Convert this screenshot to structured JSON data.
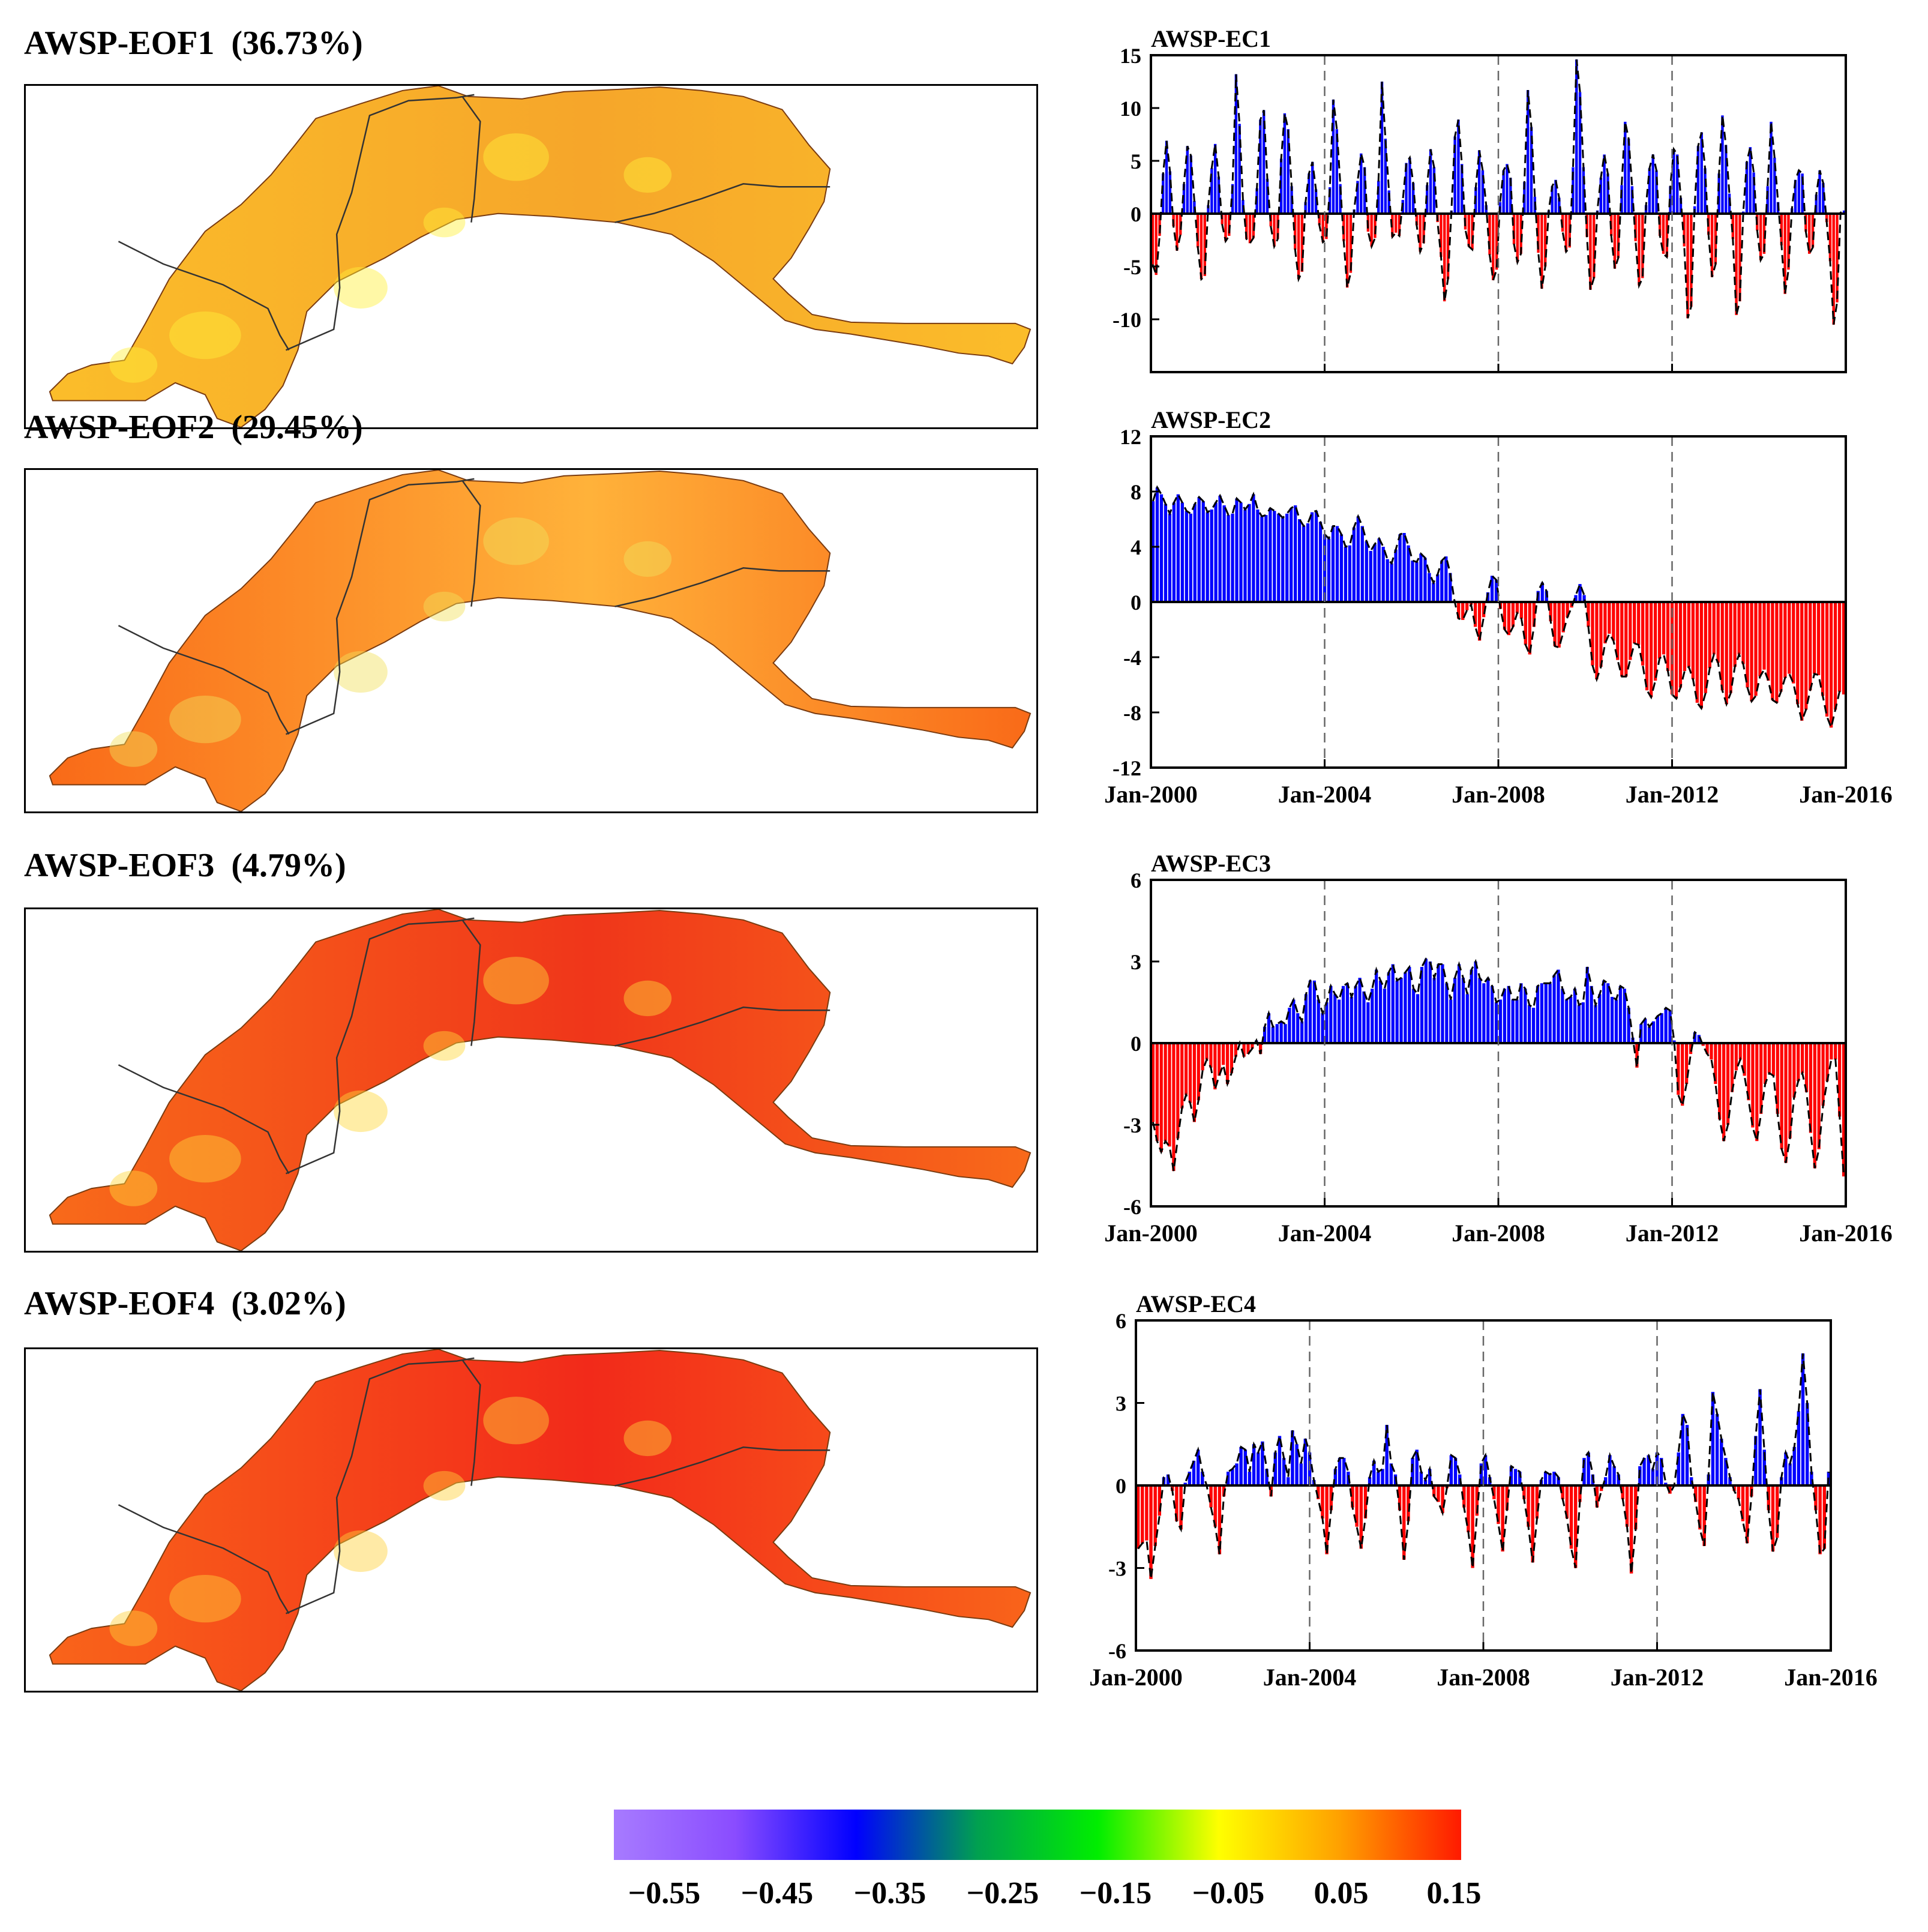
{
  "maps": [
    {
      "title": "AWSP-EOF1  (36.73%)",
      "theme": "pos1"
    },
    {
      "title": "AWSP-EOF2  (29.45%)",
      "theme": "pos2"
    },
    {
      "title": "AWSP-EOF3  (4.79%)",
      "theme": "pos3"
    },
    {
      "title": "AWSP-EOF4  (3.02%)",
      "theme": "pos4"
    }
  ],
  "chart_data": [
    {
      "type": "bar",
      "title": "AWSP-EC1",
      "ylim": [
        -15,
        15
      ],
      "yticks": [
        -10,
        -5,
        0,
        5,
        10,
        15
      ],
      "ytick_labels": [
        "-10",
        "-5",
        "0",
        "5",
        "10",
        "15"
      ],
      "xlim": [
        2000,
        2016
      ],
      "xticks": [
        2000,
        2004,
        2008,
        2012,
        2016
      ],
      "xtick_labels": [],
      "dashed_vlines": [
        2004,
        2008,
        2012
      ],
      "positive_color": "#0000ff",
      "negative_color": "#ff0000",
      "series": [
        {
          "name": "AWSP-EC1",
          "style": "monthly bars with dashed envelope",
          "values": [
            -4.8,
            -5.8,
            -2.1,
            3.8,
            6.9,
            4.0,
            -1.2,
            -3.5,
            -2.0,
            2.8,
            6.4,
            5.5,
            1.2,
            -3.2,
            -6.2,
            -5.9,
            0.8,
            4.3,
            6.6,
            3.5,
            -1.0,
            -2.6,
            -2.1,
            2.8,
            13.2,
            8.5,
            1.3,
            -2.4,
            -2.8,
            -2.3,
            2.4,
            8.9,
            9.8,
            3.3,
            -1.2,
            -3.1,
            -2.4,
            5.2,
            9.5,
            8.0,
            2.6,
            -3.4,
            -6.2,
            -5.5,
            1.1,
            3.8,
            4.9,
            2.3,
            -1.1,
            -2.7,
            -2.4,
            2.5,
            10.8,
            8.0,
            2.8,
            -2.6,
            -7.0,
            -5.6,
            0.4,
            3.1,
            5.7,
            4.4,
            -1.7,
            -3.1,
            -2.3,
            3.1,
            12.5,
            7.1,
            2.2,
            -2.2,
            -1.8,
            -2.1,
            1.3,
            4.8,
            5.3,
            2.9,
            -1.1,
            -3.6,
            -2.8,
            2.7,
            6.1,
            4.4,
            -0.8,
            -4.1,
            -8.3,
            -6.2,
            0.3,
            7.3,
            8.9,
            4.7,
            -1.5,
            -3.1,
            -3.4,
            2.5,
            6.0,
            4.1,
            0.8,
            -3.9,
            -6.3,
            -5.3,
            1.1,
            4.1,
            4.7,
            3.4,
            -2.9,
            -4.6,
            -3.8,
            3.0,
            11.7,
            8.2,
            1.6,
            -3.7,
            -7.1,
            -5.0,
            0.3,
            2.6,
            3.2,
            1.5,
            -1.7,
            -3.6,
            -3.2,
            4.4,
            14.6,
            11.5,
            4.4,
            -2.2,
            -7.2,
            -6.1,
            0.3,
            3.4,
            5.6,
            3.8,
            -2.1,
            -5.2,
            -4.2,
            2.7,
            8.7,
            7.1,
            2.6,
            -2.6,
            -6.8,
            -6.1,
            0.8,
            4.3,
            5.6,
            4.1,
            -2.1,
            -3.8,
            -4.1,
            2.6,
            6.1,
            5.6,
            1.5,
            -3.1,
            -9.9,
            -8.8,
            0.7,
            6.4,
            7.7,
            4.3,
            -2.0,
            -6.0,
            -4.8,
            3.8,
            9.3,
            6.5,
            1.9,
            -2.4,
            -9.6,
            -8.3,
            0.2,
            4.9,
            6.3,
            3.9,
            -1.6,
            -4.4,
            -3.8,
            2.6,
            8.7,
            5.3,
            1.1,
            -3.0,
            -7.6,
            -5.3,
            0.5,
            3.2,
            4.1,
            3.8,
            -1.7,
            -3.8,
            -3.2,
            1.8,
            4.1,
            2.9,
            -0.8,
            -4.5,
            -10.5,
            -8.4,
            0.1,
            0.3
          ]
        }
      ]
    },
    {
      "type": "bar",
      "title": "AWSP-EC2",
      "ylim": [
        -12,
        12
      ],
      "yticks": [
        -12,
        -8,
        -4,
        0,
        4,
        8,
        12
      ],
      "ytick_labels": [
        "-12",
        "-8",
        "-4",
        "0",
        "4",
        "8",
        "12"
      ],
      "xlim": [
        2000,
        2016
      ],
      "xticks": [
        2000,
        2004,
        2008,
        2012,
        2016
      ],
      "xtick_labels": [
        "Jan-2000",
        "Jan-2004",
        "Jan-2008",
        "Jan-2012",
        "Jan-2016"
      ],
      "dashed_vlines": [
        2004,
        2008,
        2012
      ],
      "positive_color": "#0000ff",
      "negative_color": "#ff0000",
      "series": [
        {
          "name": "AWSP-EC2",
          "style": "monthly bars with dashed envelope",
          "values": [
            7.3,
            8.3,
            7.8,
            7.1,
            6.4,
            7.2,
            7.8,
            7.2,
            6.6,
            6.4,
            7.1,
            7.6,
            7.3,
            6.5,
            6.7,
            7.2,
            7.7,
            7.0,
            6.3,
            6.4,
            7.5,
            7.2,
            6.7,
            7.1,
            7.8,
            6.7,
            6.2,
            6.3,
            6.8,
            6.6,
            6.4,
            6.1,
            6.4,
            6.8,
            7.0,
            6.0,
            5.5,
            5.7,
            6.5,
            6.6,
            5.8,
            4.9,
            4.6,
            5.5,
            5.5,
            4.9,
            4.0,
            4.1,
            5.4,
            6.2,
            5.5,
            4.4,
            3.7,
            4.2,
            4.6,
            4.0,
            3.1,
            2.8,
            3.8,
            4.9,
            5.0,
            4.1,
            3.0,
            2.9,
            3.5,
            3.2,
            2.1,
            1.4,
            2.0,
            3.0,
            3.3,
            2.1,
            0.1,
            -1.2,
            -1.3,
            -0.6,
            -0.2,
            -1.8,
            -2.8,
            -1.1,
            0.7,
            1.9,
            1.6,
            -0.5,
            -2.0,
            -2.4,
            -1.8,
            -0.8,
            -1.2,
            -3.1,
            -3.8,
            -1.8,
            0.8,
            1.4,
            0.8,
            -1.4,
            -3.2,
            -3.3,
            -2.2,
            -1.1,
            -0.4,
            0.5,
            1.3,
            0.5,
            -1.8,
            -4.6,
            -5.6,
            -4.7,
            -3.0,
            -2.3,
            -2.8,
            -4.2,
            -5.4,
            -5.4,
            -4.2,
            -3.0,
            -3.1,
            -4.6,
            -6.4,
            -6.9,
            -5.7,
            -4.1,
            -3.8,
            -5.0,
            -6.7,
            -7.0,
            -6.2,
            -5.0,
            -4.7,
            -5.6,
            -7.3,
            -7.7,
            -6.6,
            -4.8,
            -3.8,
            -4.4,
            -6.4,
            -7.4,
            -6.6,
            -4.7,
            -3.8,
            -4.5,
            -6.2,
            -7.2,
            -6.8,
            -5.4,
            -4.9,
            -5.7,
            -7.1,
            -7.3,
            -6.5,
            -5.5,
            -5.2,
            -5.9,
            -7.4,
            -8.6,
            -7.8,
            -6.4,
            -5.2,
            -5.3,
            -6.8,
            -8.3,
            -9.1,
            -7.8,
            -6.5,
            -6.7
          ]
        }
      ]
    },
    {
      "type": "bar",
      "title": "AWSP-EC3",
      "ylim": [
        -6,
        6
      ],
      "yticks": [
        -6,
        -3,
        0,
        3,
        6
      ],
      "ytick_labels": [
        "-6",
        "-3",
        "0",
        "3",
        "6"
      ],
      "xlim": [
        2000,
        2016
      ],
      "xticks": [
        2000,
        2004,
        2008,
        2012,
        2016
      ],
      "xtick_labels": [
        "Jan-2000",
        "Jan-2004",
        "Jan-2008",
        "Jan-2012",
        "Jan-2016"
      ],
      "dashed_vlines": [
        2004,
        2008,
        2012
      ],
      "positive_color": "#0000ff",
      "negative_color": "#ff0000",
      "series": [
        {
          "name": "AWSP-EC3",
          "style": "monthly bars with dashed envelope",
          "values": [
            -2.9,
            -3.6,
            -4.0,
            -3.6,
            -3.8,
            -4.7,
            -3.5,
            -2.4,
            -1.9,
            -2.2,
            -2.9,
            -2.1,
            -1.0,
            -0.6,
            -0.9,
            -1.7,
            -1.2,
            -0.8,
            -1.5,
            -1.1,
            -0.5,
            0.0,
            -0.5,
            -0.4,
            -0.2,
            0.1,
            -0.4,
            0.6,
            1.1,
            0.6,
            0.7,
            0.8,
            0.7,
            1.3,
            1.6,
            1.1,
            0.8,
            1.8,
            2.3,
            2.3,
            1.6,
            1.1,
            1.5,
            2.1,
            1.8,
            1.6,
            2.1,
            2.2,
            1.7,
            2.1,
            2.4,
            1.9,
            1.5,
            2.0,
            2.7,
            2.3,
            2.0,
            2.6,
            2.9,
            2.3,
            2.4,
            2.6,
            2.8,
            2.0,
            1.8,
            2.8,
            3.1,
            3.0,
            2.4,
            2.9,
            2.9,
            2.2,
            1.6,
            2.4,
            2.9,
            2.4,
            1.8,
            2.7,
            3.0,
            2.4,
            2.2,
            2.4,
            2.1,
            1.5,
            1.6,
            2.0,
            2.1,
            1.6,
            1.6,
            2.2,
            2.0,
            1.4,
            1.3,
            2.1,
            2.2,
            2.2,
            2.2,
            2.5,
            2.7,
            2.0,
            1.6,
            1.7,
            2.0,
            1.4,
            1.5,
            2.8,
            2.1,
            1.4,
            1.8,
            2.3,
            2.2,
            1.7,
            1.6,
            2.1,
            2.0,
            1.3,
            0.2,
            -0.9,
            0.7,
            0.9,
            0.6,
            0.8,
            1.0,
            1.1,
            1.3,
            1.2,
            0.1,
            -1.9,
            -2.3,
            -1.5,
            -0.4,
            0.4,
            0.3,
            -0.1,
            -0.4,
            -0.6,
            -1.5,
            -2.8,
            -3.6,
            -3.0,
            -1.8,
            -1.0,
            -0.6,
            -1.2,
            -2.1,
            -3.1,
            -3.6,
            -2.6,
            -1.5,
            -1.1,
            -1.2,
            -2.6,
            -3.9,
            -4.4,
            -3.5,
            -2.0,
            -1.4,
            -1.1,
            -1.8,
            -3.3,
            -4.6,
            -3.9,
            -2.3,
            -1.4,
            -0.6,
            -0.6,
            -2.7,
            -4.9
          ]
        }
      ]
    },
    {
      "type": "bar",
      "title": "AWSP-EC4",
      "ylim": [
        -6,
        6
      ],
      "yticks": [
        -6,
        -3,
        0,
        3,
        6
      ],
      "ytick_labels": [
        "-6",
        "-3",
        "0",
        "3",
        "6"
      ],
      "xlim": [
        2000,
        2016
      ],
      "xticks": [
        2000,
        2004,
        2008,
        2012,
        2016
      ],
      "xtick_labels": [
        "Jan-2000",
        "Jan-2004",
        "Jan-2008",
        "Jan-2012",
        "Jan-2016"
      ],
      "dashed_vlines": [
        2004,
        2008,
        2012
      ],
      "positive_color": "#0000ff",
      "negative_color": "#ff0000",
      "series": [
        {
          "name": "AWSP-EC4",
          "style": "monthly bars with dashed envelope",
          "values": [
            -2.3,
            -2.1,
            -2.0,
            -3.4,
            -2.2,
            -1.1,
            0.3,
            0.4,
            -0.2,
            -1.3,
            -1.6,
            0.1,
            0.5,
            0.9,
            1.3,
            0.5,
            0.0,
            -0.8,
            -1.5,
            -2.5,
            -0.4,
            0.5,
            0.6,
            0.8,
            1.4,
            1.3,
            0.5,
            1.5,
            1.2,
            1.6,
            0.6,
            -0.4,
            1.2,
            1.8,
            1.0,
            0.3,
            2.0,
            1.5,
            0.8,
            1.7,
            1.2,
            0.2,
            -0.5,
            -1.2,
            -2.5,
            -0.9,
            0.6,
            1.0,
            1.0,
            0.5,
            -0.8,
            -1.5,
            -2.3,
            -1.2,
            0.3,
            0.9,
            0.5,
            0.6,
            2.2,
            0.8,
            0.4,
            -0.9,
            -2.7,
            -1.3,
            1.0,
            1.3,
            0.5,
            0.2,
            0.6,
            -0.4,
            -0.6,
            -1.0,
            -0.1,
            1.1,
            1.0,
            0.4,
            -0.8,
            -1.7,
            -3.0,
            -1.1,
            0.8,
            1.1,
            0.3,
            -0.5,
            -1.4,
            -2.4,
            -0.9,
            0.7,
            0.6,
            0.5,
            -0.5,
            -1.5,
            -2.8,
            -1.2,
            0.2,
            0.5,
            0.4,
            0.5,
            0.3,
            -0.5,
            -1.2,
            -2.3,
            -3.0,
            -0.6,
            1.0,
            1.2,
            0.4,
            -0.8,
            -0.2,
            0.3,
            1.1,
            0.7,
            0.4,
            -0.5,
            -1.5,
            -3.2,
            -1.6,
            0.7,
            1.0,
            1.1,
            0.6,
            1.2,
            1.0,
            0.1,
            -0.3,
            0.0,
            1.2,
            2.6,
            2.2,
            0.3,
            -0.6,
            -1.6,
            -2.2,
            0.4,
            3.4,
            2.6,
            1.7,
            1.0,
            0.3,
            -0.2,
            -0.5,
            -1.3,
            -2.1,
            -0.4,
            1.8,
            3.5,
            1.3,
            -0.9,
            -2.4,
            -1.9,
            0.3,
            1.2,
            0.8,
            1.4,
            2.7,
            4.8,
            3.0,
            0.5,
            -0.9,
            -2.5,
            -2.3,
            0.5
          ]
        }
      ]
    }
  ],
  "colorbar": {
    "tick_labels": [
      "−0.55",
      "−0.45",
      "−0.35",
      "−0.25",
      "−0.15",
      "−0.05",
      "0.05",
      "0.15"
    ],
    "colors": [
      "#a77bff",
      "#8a4cff",
      "#0000ff",
      "#00a050",
      "#00ee00",
      "#ffff00",
      "#ffa000",
      "#ff1a00"
    ]
  },
  "colors": {
    "pos1": [
      "#fbbd2a",
      "#f6a62a",
      "#fff03a"
    ],
    "pos2": [
      "#f96a18",
      "#ffb23a",
      "#f2e05a"
    ],
    "pos3": [
      "#f86a1a",
      "#f0361a",
      "#ffd83a"
    ],
    "pos4": [
      "#f9641a",
      "#f22a1a",
      "#ffd03a"
    ]
  }
}
